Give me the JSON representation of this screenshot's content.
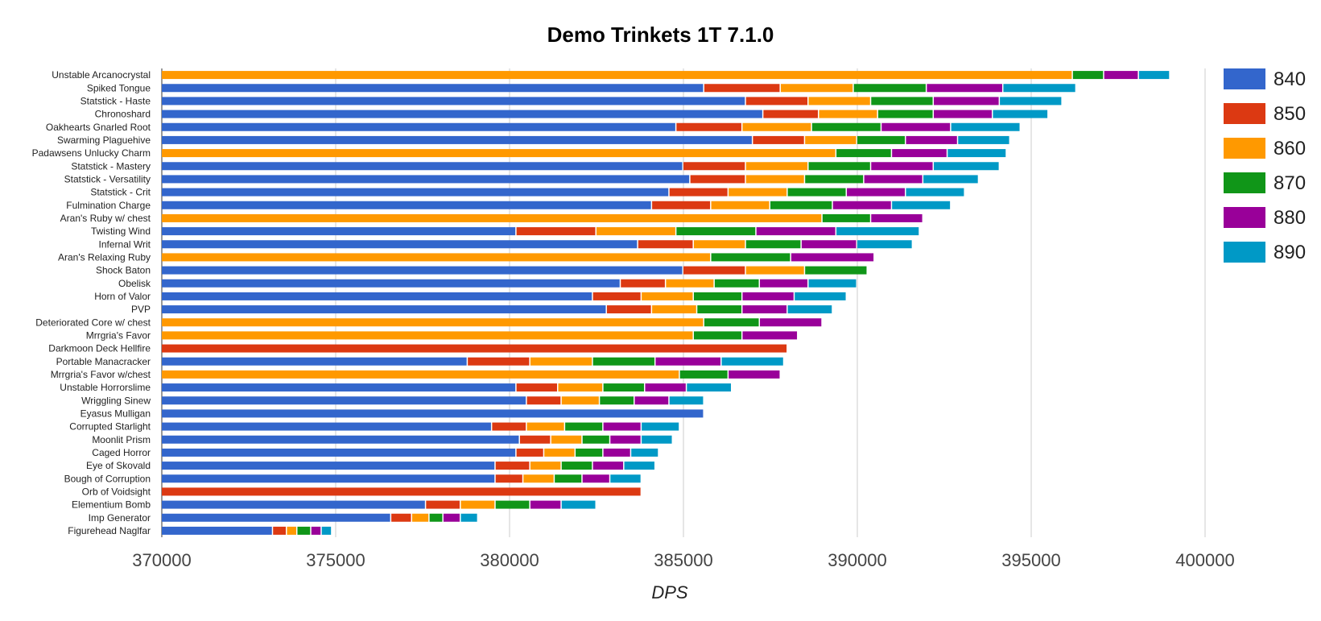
{
  "chart_data": {
    "type": "bar",
    "orientation": "horizontal",
    "stacked": true,
    "title": "Demo Trinkets 1T 7.1.0",
    "xlabel": "DPS",
    "ylabel": "",
    "xlim": [
      370000,
      400000
    ],
    "x_ticks": [
      "370000",
      "375000",
      "380000",
      "385000",
      "390000",
      "395000",
      "400000"
    ],
    "grid": "vertical",
    "legend_position": "right",
    "series_names": [
      "840",
      "850",
      "860",
      "870",
      "880",
      "890"
    ],
    "colors": {
      "840": "#3366cc",
      "850": "#dc3912",
      "860": "#ff9900",
      "870": "#109618",
      "880": "#990099",
      "890": "#0099c6"
    },
    "rows": [
      {
        "label": "Unstable Arcanocrystal",
        "start": "860",
        "ends": [
          396200,
          397100,
          398100,
          399000
        ]
      },
      {
        "label": "Spiked Tongue",
        "start": "840",
        "ends": [
          385600,
          387800,
          389900,
          392000,
          394200,
          396300
        ]
      },
      {
        "label": "Statstick - Haste",
        "start": "840",
        "ends": [
          386800,
          388600,
          390400,
          392200,
          394100,
          395900
        ]
      },
      {
        "label": "Chronoshard",
        "start": "840",
        "ends": [
          387300,
          388900,
          390600,
          392200,
          393900,
          395500
        ]
      },
      {
        "label": "Oakhearts Gnarled Root",
        "start": "840",
        "ends": [
          384800,
          386700,
          388700,
          390700,
          392700,
          394700
        ]
      },
      {
        "label": "Swarming Plaguehive",
        "start": "840",
        "ends": [
          387000,
          388500,
          390000,
          391400,
          392900,
          394400
        ]
      },
      {
        "label": "Padawsens Unlucky Charm",
        "start": "860",
        "ends": [
          389400,
          391000,
          392600,
          394300
        ]
      },
      {
        "label": "Statstick - Mastery",
        "start": "840",
        "ends": [
          385000,
          386800,
          388600,
          390400,
          392200,
          394100
        ]
      },
      {
        "label": "Statstick - Versatility",
        "start": "840",
        "ends": [
          385200,
          386800,
          388500,
          390200,
          391900,
          393500
        ]
      },
      {
        "label": "Statstick - Crit",
        "start": "840",
        "ends": [
          384600,
          386300,
          388000,
          389700,
          391400,
          393100
        ]
      },
      {
        "label": "Fulmination Charge",
        "start": "840",
        "ends": [
          384100,
          385800,
          387500,
          389300,
          391000,
          392700
        ]
      },
      {
        "label": "Aran's Ruby w/ chest",
        "start": "860",
        "ends": [
          389000,
          390400,
          391900
        ]
      },
      {
        "label": "Twisting Wind",
        "start": "840",
        "ends": [
          380200,
          382500,
          384800,
          387100,
          389400,
          391800
        ]
      },
      {
        "label": "Infernal Writ",
        "start": "840",
        "ends": [
          383700,
          385300,
          386800,
          388400,
          390000,
          391600
        ]
      },
      {
        "label": "Aran's Relaxing Ruby",
        "start": "860",
        "ends": [
          385800,
          388100,
          390500
        ]
      },
      {
        "label": "Shock Baton",
        "start": "840",
        "ends": [
          385000,
          386800,
          388500,
          390300
        ]
      },
      {
        "label": "Obelisk",
        "start": "840",
        "ends": [
          383200,
          384500,
          385900,
          387200,
          388600,
          390000
        ]
      },
      {
        "label": "Horn of Valor",
        "start": "840",
        "ends": [
          382400,
          383800,
          385300,
          386700,
          388200,
          389700
        ]
      },
      {
        "label": "PVP",
        "start": "840",
        "ends": [
          382800,
          384100,
          385400,
          386700,
          388000,
          389300
        ]
      },
      {
        "label": "Deteriorated Core w/ chest",
        "start": "860",
        "ends": [
          385600,
          387200,
          389000
        ]
      },
      {
        "label": "Mrrgria's Favor",
        "start": "860",
        "ends": [
          385300,
          386700,
          388300
        ]
      },
      {
        "label": "Darkmoon Deck Hellfire",
        "start": "850",
        "ends": [
          388000
        ]
      },
      {
        "label": "Portable Manacracker",
        "start": "840",
        "ends": [
          378800,
          380600,
          382400,
          384200,
          386100,
          387900
        ]
      },
      {
        "label": "Mrrgria's Favor w/chest",
        "start": "860",
        "ends": [
          384900,
          386300,
          387800
        ]
      },
      {
        "label": "Unstable Horrorslime",
        "start": "840",
        "ends": [
          380200,
          381400,
          382700,
          383900,
          385100,
          386400
        ]
      },
      {
        "label": "Wriggling Sinew",
        "start": "840",
        "ends": [
          380500,
          381500,
          382600,
          383600,
          384600,
          385600
        ]
      },
      {
        "label": "Eyasus Mulligan",
        "start": "840",
        "ends": [
          385600
        ]
      },
      {
        "label": "Corrupted Starlight",
        "start": "840",
        "ends": [
          379500,
          380500,
          381600,
          382700,
          383800,
          384900
        ]
      },
      {
        "label": "Moonlit Prism",
        "start": "840",
        "ends": [
          380300,
          381200,
          382100,
          382900,
          383800,
          384700
        ]
      },
      {
        "label": "Caged Horror",
        "start": "840",
        "ends": [
          380200,
          381000,
          381900,
          382700,
          383500,
          384300
        ]
      },
      {
        "label": "Eye of Skovald",
        "start": "840",
        "ends": [
          379600,
          380600,
          381500,
          382400,
          383300,
          384200
        ]
      },
      {
        "label": "Bough of Corruption",
        "start": "840",
        "ends": [
          379600,
          380400,
          381300,
          382100,
          382900,
          383800
        ]
      },
      {
        "label": "Orb of Voidsight",
        "start": "850",
        "ends": [
          383800
        ]
      },
      {
        "label": "Elementium Bomb",
        "start": "840",
        "ends": [
          377600,
          378600,
          379600,
          380600,
          381500,
          382500
        ]
      },
      {
        "label": "Imp Generator",
        "start": "840",
        "ends": [
          376600,
          377200,
          377700,
          378100,
          378600,
          379100
        ]
      },
      {
        "label": "Figurehead Naglfar",
        "start": "840",
        "ends": [
          373200,
          373600,
          373900,
          374300,
          374600,
          374900
        ]
      }
    ]
  }
}
